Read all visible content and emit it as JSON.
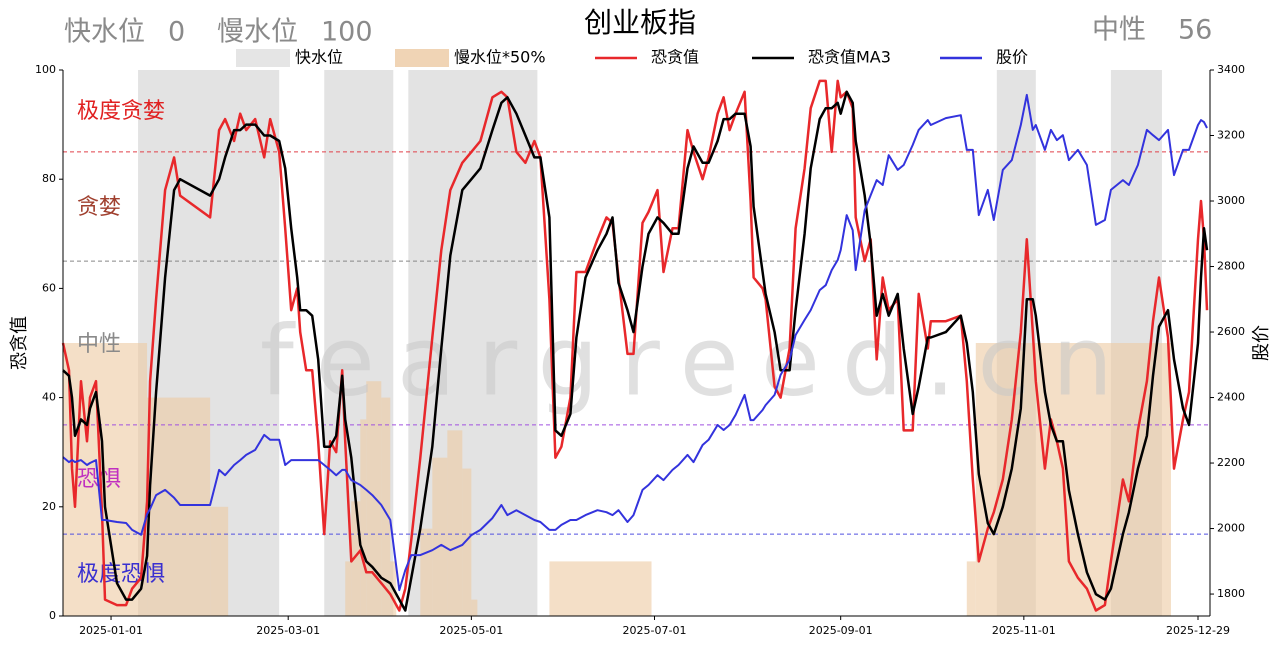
{
  "header": {
    "fast_label": "快水位",
    "fast_value": 0,
    "slow_label": "慢水位",
    "slow_value": 100,
    "state_label": "中性",
    "state_value": 56
  },
  "watermark": "feargreed.cn",
  "chart_data": {
    "type": "line",
    "title": "创业板指",
    "ylabel": "恐贪值",
    "y2label": "股价",
    "xlim": [
      "2024-12-16",
      "2026-01-02"
    ],
    "xticks": [
      "2025-01-01",
      "2025-03-01",
      "2025-05-01",
      "2025-07-01",
      "2025-09-01",
      "2025-11-01",
      "2025-12-29"
    ],
    "ylim": [
      0,
      100
    ],
    "yticks": [
      0,
      20,
      40,
      60,
      80,
      100
    ],
    "y2lim": [
      1733,
      3400
    ],
    "y2ticks": [
      1800,
      2000,
      2200,
      2400,
      2600,
      2800,
      3000,
      3200,
      3400
    ],
    "hlines": [
      {
        "value": 85,
        "color": "#e0404a"
      },
      {
        "value": 65,
        "color": "#888888"
      },
      {
        "value": 35,
        "color": "#a050e0"
      },
      {
        "value": 15,
        "color": "#5050e0"
      }
    ],
    "zones": [
      {
        "label": "极度贪婪",
        "color": "#e02020"
      },
      {
        "label": "贪婪",
        "color": "#a0402f"
      },
      {
        "label": "中性",
        "color": "#8a8a8a"
      },
      {
        "label": "恐惧",
        "color": "#c030c0"
      },
      {
        "label": "极度恐惧",
        "color": "#3a30d0"
      }
    ],
    "fast_water": {
      "name": "快水位",
      "color": "#dedede",
      "bands": [
        [
          "2025-01-10",
          "2025-02-26"
        ],
        [
          "2025-03-13",
          "2025-04-05"
        ],
        [
          "2025-04-10",
          "2025-05-23"
        ],
        [
          "2025-10-23",
          "2025-11-05"
        ],
        [
          "2025-11-30",
          "2025-12-17"
        ]
      ]
    },
    "slow_water": {
      "name": "慢水位*50%",
      "color": "#ecc9a2",
      "x": [
        "2024-12-16",
        "2025-01-13",
        "2025-02-03",
        "2025-02-09",
        "2025-03-20",
        "2025-03-22",
        "2025-03-25",
        "2025-03-27",
        "2025-04-01",
        "2025-04-04",
        "2025-04-06",
        "2025-04-14",
        "2025-04-18",
        "2025-04-23",
        "2025-04-28",
        "2025-05-01",
        "2025-05-03",
        "2025-05-27",
        "2025-06-30",
        "2025-10-13",
        "2025-10-16",
        "2025-12-20",
        "2026-01-01"
      ],
      "values": [
        50,
        40,
        20,
        0,
        10,
        21,
        36,
        43,
        40,
        10,
        0,
        16,
        29,
        34,
        27,
        3,
        0,
        10,
        0,
        10,
        50,
        0,
        0
      ]
    },
    "x": [
      "2024-12-16",
      "2024-12-18",
      "2024-12-19",
      "2024-12-20",
      "2024-12-22",
      "2024-12-24",
      "2024-12-25",
      "2024-12-27",
      "2024-12-29",
      "2024-12-30",
      "2025-01-03",
      "2025-01-06",
      "2025-01-08",
      "2025-01-11",
      "2025-01-13",
      "2025-01-14",
      "2025-01-16",
      "2025-01-19",
      "2025-01-22",
      "2025-01-24",
      "2025-02-03",
      "2025-02-06",
      "2025-02-08",
      "2025-02-11",
      "2025-02-13",
      "2025-02-15",
      "2025-02-18",
      "2025-02-21",
      "2025-02-23",
      "2025-02-26",
      "2025-02-28",
      "2025-03-02",
      "2025-03-04",
      "2025-03-05",
      "2025-03-07",
      "2025-03-09",
      "2025-03-11",
      "2025-03-13",
      "2025-03-15",
      "2025-03-17",
      "2025-03-19",
      "2025-03-20",
      "2025-03-22",
      "2025-03-25",
      "2025-03-27",
      "2025-03-29",
      "2025-04-01",
      "2025-04-04",
      "2025-04-07",
      "2025-04-09",
      "2025-04-11",
      "2025-04-14",
      "2025-04-18",
      "2025-04-21",
      "2025-04-24",
      "2025-04-28",
      "2025-05-01",
      "2025-05-04",
      "2025-05-08",
      "2025-05-11",
      "2025-05-13",
      "2025-05-16",
      "2025-05-19",
      "2025-05-22",
      "2025-05-24",
      "2025-05-27",
      "2025-05-29",
      "2025-05-31",
      "2025-06-03",
      "2025-06-05",
      "2025-06-08",
      "2025-06-12",
      "2025-06-15",
      "2025-06-17",
      "2025-06-19",
      "2025-06-22",
      "2025-06-24",
      "2025-06-27",
      "2025-06-29",
      "2025-07-02",
      "2025-07-04",
      "2025-07-07",
      "2025-07-09",
      "2025-07-12",
      "2025-07-14",
      "2025-07-17",
      "2025-07-19",
      "2025-07-22",
      "2025-07-24",
      "2025-07-26",
      "2025-07-28",
      "2025-07-31",
      "2025-08-02",
      "2025-08-03",
      "2025-08-06",
      "2025-08-07",
      "2025-08-10",
      "2025-08-12",
      "2025-08-15",
      "2025-08-17",
      "2025-08-20",
      "2025-08-22",
      "2025-08-25",
      "2025-08-27",
      "2025-08-29",
      "2025-08-31",
      "2025-09-01",
      "2025-09-03",
      "2025-09-05",
      "2025-09-06",
      "2025-09-09",
      "2025-09-11",
      "2025-09-13",
      "2025-09-15",
      "2025-09-17",
      "2025-09-20",
      "2025-09-22",
      "2025-09-25",
      "2025-09-27",
      "2025-09-30",
      "2025-10-01",
      "2025-10-06",
      "2025-10-11",
      "2025-10-13",
      "2025-10-15",
      "2025-10-17",
      "2025-10-20",
      "2025-10-22",
      "2025-10-25",
      "2025-10-28",
      "2025-10-31",
      "2025-11-02",
      "2025-11-04",
      "2025-11-05",
      "2025-11-08",
      "2025-11-10",
      "2025-11-12",
      "2025-11-14",
      "2025-11-16",
      "2025-11-19",
      "2025-11-22",
      "2025-11-25",
      "2025-11-28",
      "2025-11-30",
      "2025-12-04",
      "2025-12-06",
      "2025-12-09",
      "2025-12-12",
      "2025-12-14",
      "2025-12-16",
      "2025-12-19",
      "2025-12-21",
      "2025-12-24",
      "2025-12-26",
      "2025-12-29",
      "2025-12-30",
      "2025-12-31",
      "2026-01-01"
    ],
    "series": [
      {
        "name": "恐贪值",
        "color": "#e8282b",
        "width": 2.5,
        "values": [
          50,
          45,
          27,
          20,
          43,
          32,
          40,
          43,
          19,
          3,
          2,
          2,
          5,
          7,
          21,
          43,
          58,
          78,
          84,
          77,
          73,
          89,
          91,
          87,
          92,
          89,
          91,
          84,
          91,
          85,
          71,
          56,
          60,
          52,
          45,
          45,
          32,
          15,
          32,
          30,
          45,
          32,
          10,
          12,
          8,
          8,
          6,
          4,
          1,
          5,
          14,
          29,
          51,
          67,
          78,
          83,
          85,
          87,
          95,
          96,
          95,
          85,
          83,
          87,
          84,
          58,
          29,
          31,
          40,
          63,
          63,
          69,
          73,
          72,
          62,
          48,
          48,
          72,
          74,
          78,
          63,
          71,
          71,
          89,
          85,
          80,
          84,
          92,
          95,
          89,
          92,
          96,
          76,
          62,
          60,
          58,
          42,
          40,
          49,
          71,
          82,
          93,
          98,
          98,
          85,
          98,
          95,
          96,
          93,
          73,
          65,
          69,
          47,
          62,
          56,
          58,
          34,
          34,
          59,
          49,
          54,
          54,
          55,
          43,
          25,
          10,
          16,
          19,
          25,
          36,
          52,
          69,
          52,
          43,
          27,
          36,
          32,
          27,
          10,
          7,
          5,
          1,
          2,
          10,
          25,
          21,
          34,
          43,
          54,
          62,
          51,
          27,
          36,
          41,
          69,
          76,
          69,
          56
        ]
      },
      {
        "name": "恐贪值MA3",
        "color": "#000000",
        "width": 2.5,
        "values": [
          45,
          44,
          40,
          33,
          36,
          35,
          38,
          41,
          32,
          20,
          6,
          3,
          3,
          5,
          11,
          24,
          41,
          62,
          78,
          80,
          77,
          80,
          84,
          89,
          89,
          90,
          90,
          88,
          88,
          87,
          82,
          71,
          62,
          56,
          56,
          55,
          47,
          31,
          31,
          33,
          44,
          36,
          29,
          13,
          10,
          9,
          7,
          6,
          3,
          1,
          7,
          16,
          31,
          49,
          66,
          78,
          80,
          82,
          89,
          94,
          95,
          92,
          88,
          84,
          84,
          73,
          34,
          33,
          37,
          51,
          62,
          67,
          70,
          73,
          61,
          56,
          52,
          64,
          70,
          73,
          72,
          70,
          70,
          82,
          86,
          83,
          83,
          87,
          91,
          91,
          92,
          92,
          86,
          75,
          63,
          59,
          52,
          45,
          45,
          56,
          70,
          82,
          91,
          93,
          93,
          94,
          92,
          96,
          94,
          87,
          77,
          68,
          55,
          59,
          55,
          59,
          49,
          37,
          42,
          51,
          51,
          52,
          55,
          50,
          41,
          26,
          17,
          15,
          20,
          27,
          38,
          58,
          58,
          55,
          41,
          35,
          32,
          32,
          23,
          15,
          8,
          4,
          3,
          5,
          15,
          19,
          27,
          33,
          44,
          53,
          56,
          47,
          38,
          35,
          50,
          62,
          71,
          67
        ]
      },
      {
        "name": "股价",
        "color": "#3333dd",
        "width": 2,
        "axis": "y2",
        "values": [
          2218,
          2203,
          2209,
          2203,
          2209,
          2194,
          2200,
          2209,
          2026,
          2026,
          2020,
          2017,
          1996,
          1981,
          2044,
          2060,
          2102,
          2118,
          2094,
          2072,
          2072,
          2179,
          2163,
          2194,
          2209,
          2225,
          2240,
          2286,
          2271,
          2271,
          2194,
          2209,
          2209,
          2209,
          2209,
          2209,
          2209,
          2194,
          2179,
          2163,
          2179,
          2179,
          2148,
          2133,
          2118,
          2102,
          2072,
          2026,
          1812,
          1873,
          1919,
          1919,
          1934,
          1950,
          1934,
          1950,
          1980,
          1996,
          2032,
          2072,
          2041,
          2056,
          2041,
          2026,
          2020,
          1996,
          1996,
          2011,
          2026,
          2026,
          2041,
          2056,
          2050,
          2041,
          2056,
          2020,
          2041,
          2118,
          2133,
          2163,
          2148,
          2179,
          2194,
          2225,
          2203,
          2255,
          2271,
          2316,
          2301,
          2316,
          2347,
          2408,
          2331,
          2331,
          2362,
          2377,
          2408,
          2469,
          2515,
          2591,
          2637,
          2667,
          2728,
          2743,
          2789,
          2820,
          2850,
          2957,
          2911,
          2789,
          2972,
          3018,
          3064,
          3049,
          3140,
          3095,
          3110,
          3171,
          3217,
          3247,
          3232,
          3253,
          3262,
          3156,
          3156,
          2957,
          3034,
          2942,
          3095,
          3125,
          3232,
          3324,
          3217,
          3232,
          3156,
          3217,
          3186,
          3201,
          3125,
          3156,
          3110,
          2927,
          2942,
          3034,
          3064,
          3049,
          3110,
          3217,
          3201,
          3186,
          3217,
          3079,
          3156,
          3156,
          3232,
          3247,
          3241,
          3223
        ]
      }
    ]
  }
}
